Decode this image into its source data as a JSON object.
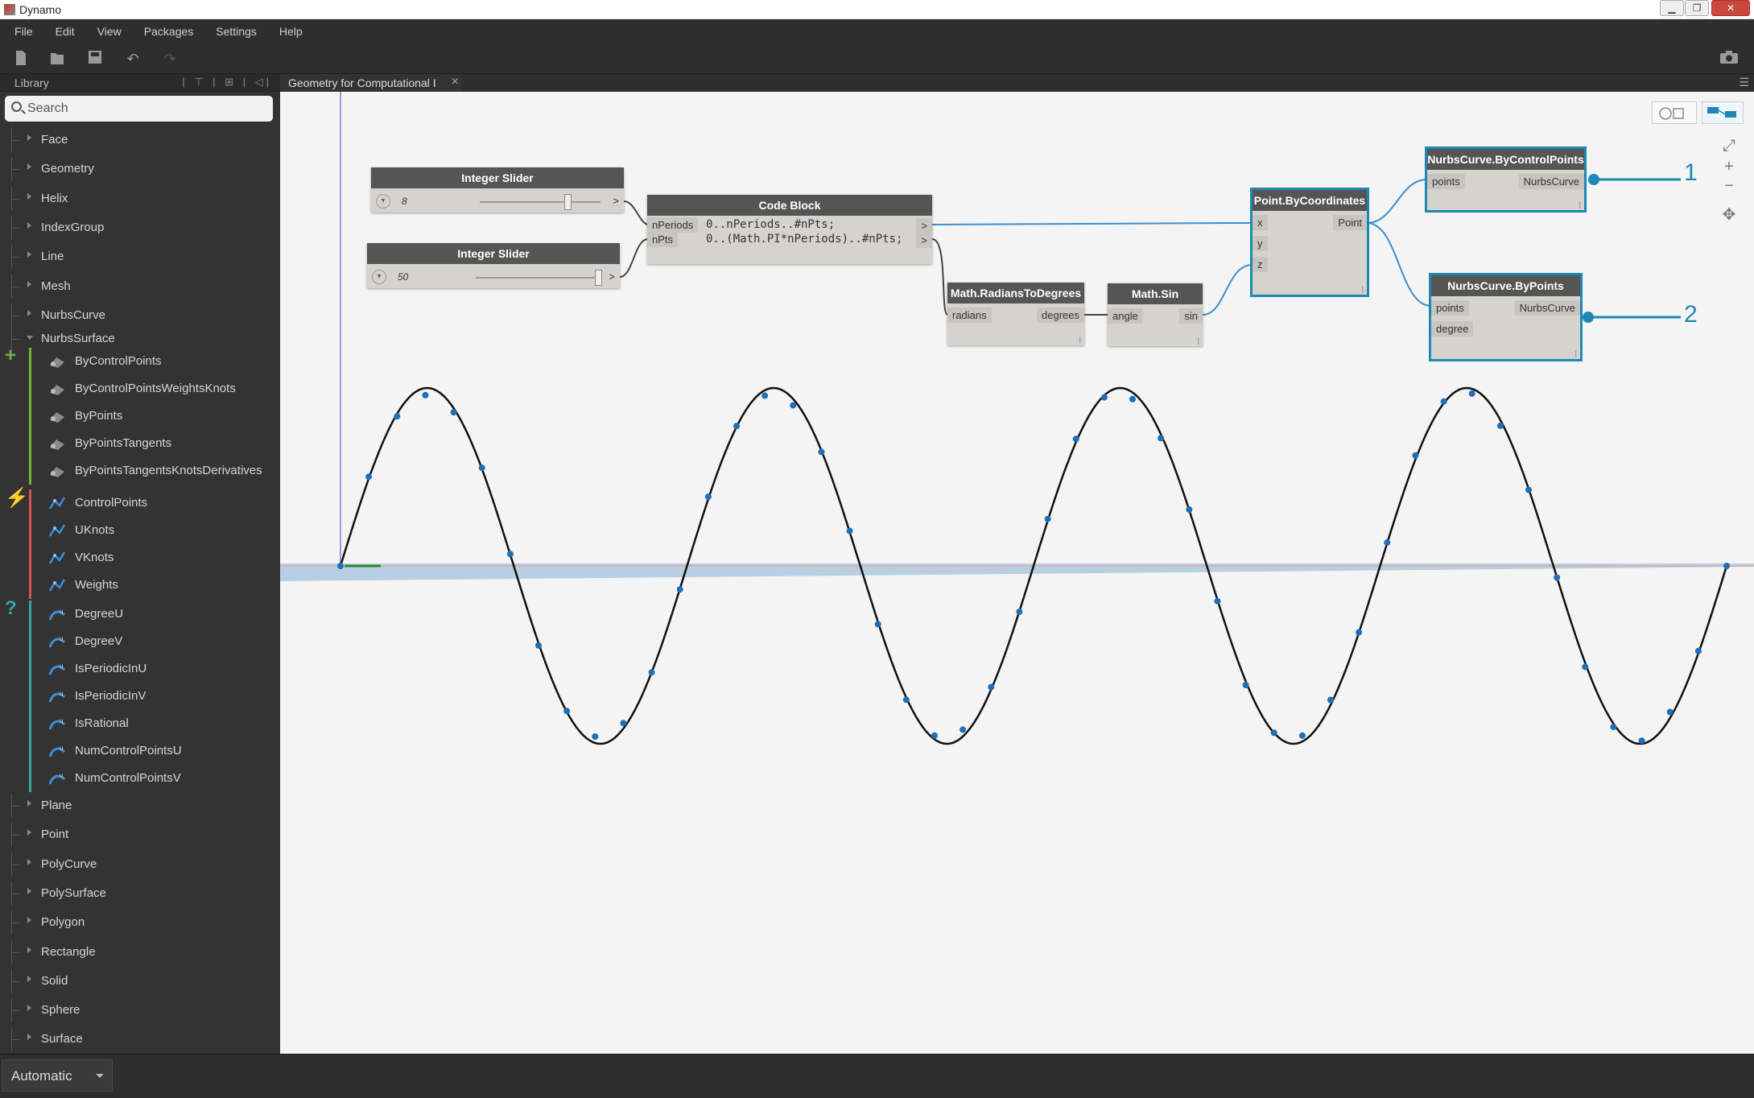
{
  "window": {
    "title": "Dynamo"
  },
  "menu": [
    "File",
    "Edit",
    "View",
    "Packages",
    "Settings",
    "Help"
  ],
  "library": {
    "title": "Library",
    "search_placeholder": "Search",
    "categories_top": [
      "Face",
      "Geometry",
      "Helix",
      "IndexGroup",
      "Line",
      "Mesh",
      "NurbsCurve"
    ],
    "open_category": "NurbsSurface",
    "create_items": [
      "ByControlPoints",
      "ByControlPointsWeightsKnots",
      "ByPoints",
      "ByPointsTangents",
      "ByPointsTangentsKnotsDerivatives"
    ],
    "action_items": [
      "ControlPoints",
      "UKnots",
      "VKnots",
      "Weights"
    ],
    "query_items": [
      "DegreeU",
      "DegreeV",
      "IsPeriodicInU",
      "IsPeriodicInV",
      "IsRational",
      "NumControlPointsU",
      "NumControlPointsV"
    ],
    "categories_bottom": [
      "Plane",
      "Point",
      "PolyCurve",
      "PolySurface",
      "Polygon",
      "Rectangle",
      "Solid",
      "Sphere",
      "Surface"
    ],
    "group_colors": {
      "create": "#6fb53f",
      "action": "#d9534f",
      "query": "#3aa6a0"
    }
  },
  "workspace": {
    "tab_label": "Geometry for Computational I",
    "run_mode": "Automatic"
  },
  "nodes": {
    "slider1": {
      "title": "Integer Slider",
      "value": "8"
    },
    "slider2": {
      "title": "Integer Slider",
      "value": "50"
    },
    "code_block": {
      "title": "Code Block",
      "inputs": [
        "nPeriods",
        "nPts"
      ],
      "lines": [
        "0..nPeriods..#nPts;",
        "0..(Math.PI*nPeriods)..#nPts;"
      ]
    },
    "radians": {
      "title": "Math.RadiansToDegrees",
      "input": "radians",
      "output": "degrees"
    },
    "sin": {
      "title": "Math.Sin",
      "input": "angle",
      "output": "sin"
    },
    "point": {
      "title": "Point.ByCoordinates",
      "inputs": [
        "x",
        "y",
        "z"
      ],
      "output": "Point"
    },
    "curve1": {
      "title": "NurbsCurve.ByControlPoints",
      "input": "points",
      "output": "NurbsCurve"
    },
    "curve2": {
      "title": "NurbsCurve.ByPoints",
      "inputs": [
        "points",
        "degree"
      ],
      "output": "NurbsCurve"
    }
  },
  "callouts": [
    "1",
    "2"
  ],
  "colors": {
    "accent": "#1e88b4",
    "point": "#1d6fb8",
    "curve": "#111111"
  }
}
